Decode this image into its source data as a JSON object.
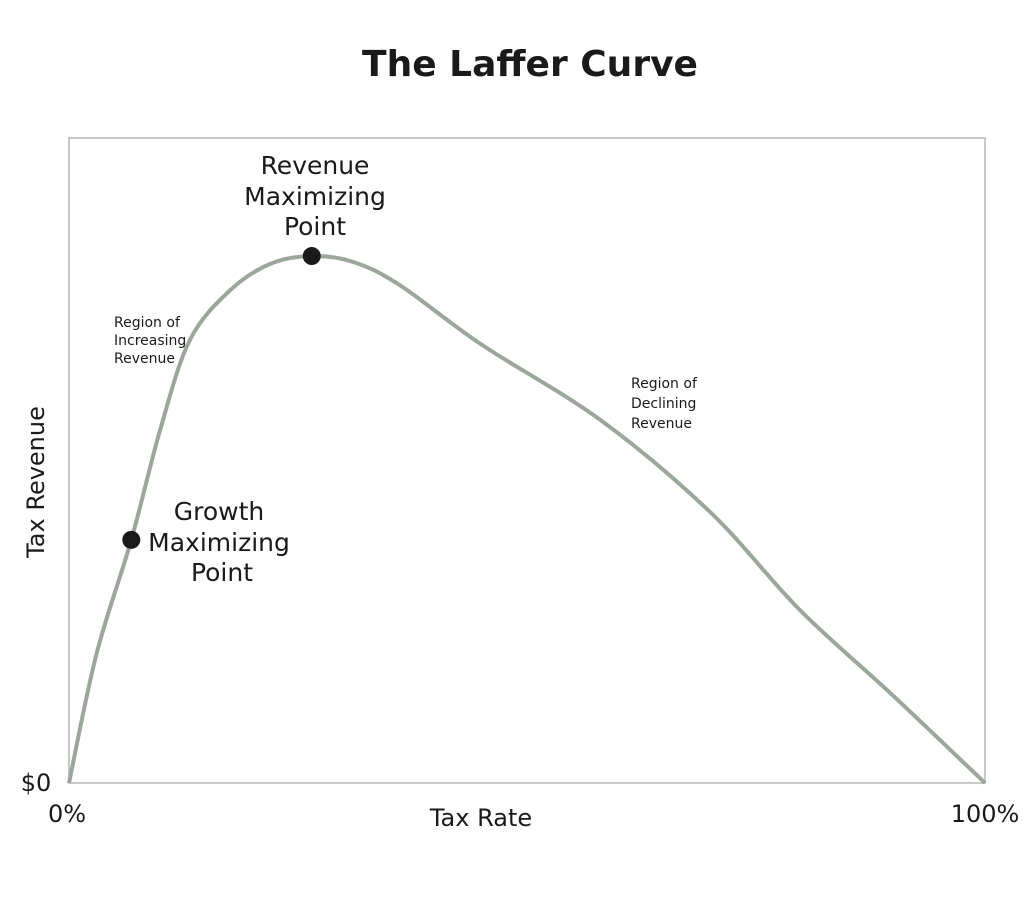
{
  "chart_data": {
    "type": "line",
    "title": "The Laffer Curve",
    "xlabel": "Tax Rate",
    "ylabel": "Tax Revenue",
    "x_ticks": [
      {
        "value": 0,
        "label": "0%"
      },
      {
        "value": 100,
        "label": "100%"
      }
    ],
    "y_ticks": [
      {
        "value": 0,
        "label": "$0"
      }
    ],
    "xlim": [
      0,
      100
    ],
    "ylim": [
      0,
      100
    ],
    "grid": false,
    "series": [
      {
        "x": [
          0,
          3,
          6.8,
          10,
          13.2,
          17.6,
          22,
          26.5,
          31,
          36.1,
          45,
          58,
          70,
          79.8,
          90,
          100
        ],
        "y": [
          0,
          20,
          37.7,
          55,
          68.7,
          76.4,
          80.5,
          81.7,
          80.8,
          77.2,
          68,
          56.3,
          42,
          26.8,
          13.5,
          0
        ],
        "color": "#9aa79a"
      }
    ],
    "points": [
      {
        "name": "revenue-maximizing-point",
        "x": 26.5,
        "y": 81.7,
        "label": [
          "Revenue",
          "Maximizing",
          "Point"
        ]
      },
      {
        "name": "growth-maximizing-point",
        "x": 6.8,
        "y": 37.7,
        "label": [
          "Growth",
          "Maximizing",
          "Point"
        ]
      }
    ],
    "annotations": [
      {
        "name": "region-increasing",
        "lines": [
          "Region of",
          "Increasing",
          "Revenue"
        ]
      },
      {
        "name": "region-declining",
        "lines": [
          "Region of",
          "Declining",
          "Revenue"
        ]
      }
    ],
    "colors": {
      "curve": "#9aa79a",
      "point": "#1a1a1a",
      "frame": "#b5b5b5"
    }
  }
}
